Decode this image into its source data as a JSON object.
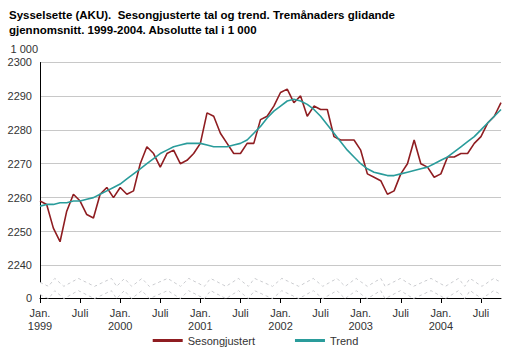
{
  "chart_data": {
    "type": "line",
    "title": "Sysselsette (AKU).  Sesongjusterte tal og trend. Tremånaders glidande\ngjennomsnitt. 1999-2004. Absolutte tal i 1 000",
    "y_label": "1 000",
    "categories": [
      "Jan.\n1999",
      null,
      null,
      null,
      null,
      null,
      "Juli",
      null,
      null,
      null,
      null,
      null,
      "Jan.\n2000",
      null,
      null,
      null,
      null,
      null,
      "Juli",
      null,
      null,
      null,
      null,
      null,
      "Jan.\n2001",
      null,
      null,
      null,
      null,
      null,
      "Juli",
      null,
      null,
      null,
      null,
      null,
      "Jan.\n2002",
      null,
      null,
      null,
      null,
      null,
      "Juli",
      null,
      null,
      null,
      null,
      null,
      "Jan.\n2003",
      null,
      null,
      null,
      null,
      null,
      "Juli",
      null,
      null,
      null,
      null,
      null,
      "Jan.\n2004",
      null,
      null,
      null,
      null,
      null,
      "Juli",
      null,
      null,
      null
    ],
    "series": [
      {
        "name": "Sesongjustert",
        "color": "#8f1d21",
        "values": [
          2259,
          2258,
          2251,
          2247,
          2256,
          2261,
          2259,
          2255,
          2254,
          2261,
          2263,
          2260,
          2263,
          2261,
          2262,
          2270,
          2275,
          2273,
          2269,
          2273,
          2274,
          2270,
          2271,
          2273,
          2276,
          2285,
          2284,
          2279,
          2276,
          2273,
          2273,
          2276,
          2276,
          2283,
          2284,
          2287,
          2291,
          2292,
          2288,
          2290,
          2284,
          2287,
          2286,
          2286,
          2278,
          2277,
          2277,
          2277,
          2274,
          2267,
          2266,
          2265,
          2261,
          2262,
          2267,
          2270,
          2277,
          2270,
          2269,
          2266,
          2267,
          2272,
          2272,
          2273,
          2273,
          2276,
          2278,
          2282,
          2284,
          2288
        ]
      },
      {
        "name": "Trend",
        "color": "#2a9c9b",
        "values": [
          2257.5,
          2258,
          2258,
          2258.5,
          2258.5,
          2259,
          2259,
          2259.5,
          2260,
          2261,
          2262,
          2263,
          2264,
          2265.5,
          2267,
          2268.5,
          2270,
          2271.5,
          2273,
          2274,
          2275,
          2275.5,
          2276,
          2276,
          2276,
          2275.5,
          2275,
          2275,
          2275,
          2275.5,
          2276,
          2277,
          2279,
          2281,
          2283.5,
          2285.5,
          2287,
          2288.5,
          2289,
          2288.5,
          2287.5,
          2286,
          2284,
          2281.5,
          2279,
          2276.5,
          2274,
          2272,
          2270,
          2268.5,
          2267.5,
          2267,
          2266.5,
          2266.5,
          2267,
          2267.5,
          2268,
          2268.5,
          2269,
          2270,
          2271,
          2272,
          2273.5,
          2275,
          2276.5,
          2278,
          2280,
          2282,
          2284,
          2286
        ]
      }
    ],
    "ylim": [
      0,
      2300
    ],
    "yticks": [
      0,
      2240,
      2250,
      2260,
      2270,
      2280,
      2290,
      2300
    ],
    "grid": true,
    "legend": "bottom"
  }
}
